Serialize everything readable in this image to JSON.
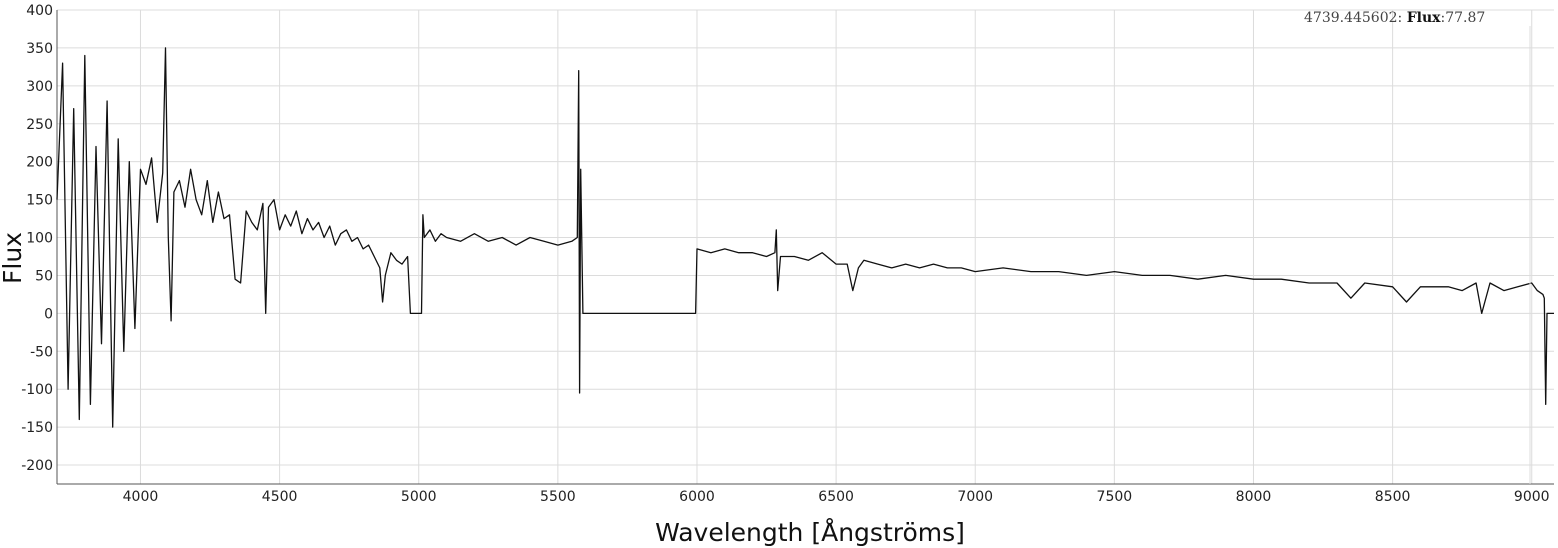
{
  "chart_data": {
    "type": "line",
    "title": "",
    "xlabel": "Wavelength [Ångströms]",
    "ylabel": "Flux",
    "xlim": [
      3700,
      9080
    ],
    "ylim": [
      -225,
      400
    ],
    "x_ticks": [
      4000,
      4500,
      5000,
      5500,
      6000,
      6500,
      7000,
      7500,
      8000,
      8500,
      9000
    ],
    "y_ticks": [
      400,
      350,
      300,
      250,
      200,
      150,
      100,
      50,
      0,
      -50,
      -100,
      -150,
      -200
    ],
    "grid": true,
    "legend": "none",
    "line_color": "#111111",
    "grid_color": "#dcdcdc",
    "cursor_readout": {
      "x_value": "4739.445602",
      "y_key": "Flux",
      "y_value": "77.87"
    },
    "series": [
      {
        "x": [
          3700,
          3720,
          3740,
          3760,
          3780,
          3800,
          3820,
          3840,
          3860,
          3880,
          3900,
          3920,
          3940,
          3960,
          3980,
          4000,
          4020,
          4040,
          4060,
          4080,
          4090,
          4100,
          4110,
          4120,
          4140,
          4160,
          4180,
          4200,
          4220,
          4240,
          4260,
          4280,
          4300,
          4320,
          4340,
          4360,
          4380,
          4400,
          4420,
          4440,
          4450,
          4460,
          4480,
          4500,
          4520,
          4540,
          4560,
          4580,
          4600,
          4620,
          4640,
          4660,
          4680,
          4700,
          4720,
          4740,
          4760,
          4780,
          4800,
          4820,
          4840,
          4860,
          4870,
          4880,
          4900,
          4920,
          4940,
          4960,
          4970,
          4975,
          5010,
          5015,
          5020,
          5040,
          5060,
          5080,
          5100,
          5150,
          5200,
          5250,
          5300,
          5350,
          5400,
          5450,
          5500,
          5550,
          5570,
          5575,
          5578,
          5582,
          5586,
          5590,
          5990,
          5995,
          6000,
          6050,
          6100,
          6150,
          6200,
          6250,
          6280,
          6285,
          6290,
          6300,
          6350,
          6400,
          6450,
          6500,
          6540,
          6560,
          6580,
          6600,
          6650,
          6700,
          6750,
          6800,
          6850,
          6900,
          6950,
          7000,
          7100,
          7200,
          7300,
          7400,
          7500,
          7600,
          7700,
          7800,
          7900,
          8000,
          8100,
          8200,
          8300,
          8350,
          8400,
          8500,
          8550,
          8600,
          8700,
          8750,
          8800,
          8820,
          8850,
          8900,
          8950,
          9000,
          9020,
          9040,
          9045,
          9050,
          9055,
          9060,
          9080
        ],
        "y": [
          150,
          330,
          -100,
          270,
          -140,
          340,
          -120,
          220,
          -40,
          280,
          -150,
          230,
          -50,
          200,
          -20,
          190,
          170,
          205,
          120,
          185,
          350,
          100,
          -10,
          160,
          175,
          140,
          190,
          150,
          130,
          175,
          120,
          160,
          125,
          130,
          45,
          40,
          135,
          120,
          110,
          145,
          0,
          140,
          150,
          110,
          130,
          115,
          135,
          105,
          125,
          110,
          120,
          100,
          115,
          90,
          105,
          110,
          95,
          100,
          85,
          90,
          75,
          60,
          15,
          50,
          80,
          70,
          65,
          75,
          0,
          0,
          0,
          130,
          100,
          110,
          95,
          105,
          100,
          95,
          105,
          95,
          100,
          90,
          100,
          95,
          90,
          95,
          100,
          320,
          -105,
          190,
          95,
          0,
          0,
          0,
          85,
          80,
          85,
          80,
          80,
          75,
          80,
          110,
          30,
          75,
          75,
          70,
          80,
          65,
          65,
          30,
          60,
          70,
          65,
          60,
          65,
          60,
          65,
          60,
          60,
          55,
          60,
          55,
          55,
          50,
          55,
          50,
          50,
          45,
          50,
          45,
          45,
          40,
          40,
          20,
          40,
          35,
          15,
          35,
          35,
          30,
          40,
          0,
          40,
          30,
          35,
          40,
          30,
          25,
          20,
          -120,
          0,
          0,
          0
        ]
      }
    ]
  }
}
